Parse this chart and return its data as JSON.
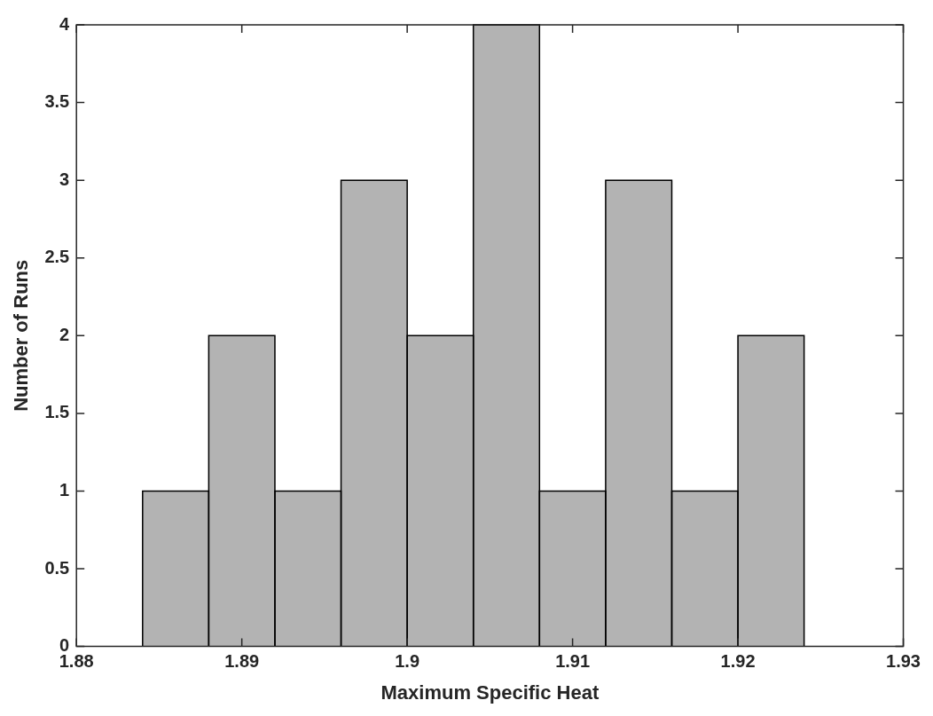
{
  "chart_data": {
    "type": "histogram",
    "xlabel": "Maximum Specific Heat",
    "ylabel": "Number of Runs",
    "bins": [
      1.884,
      1.888,
      1.892,
      1.896,
      1.9,
      1.904,
      1.908,
      1.912,
      1.916,
      1.92,
      1.924
    ],
    "values": [
      1,
      2,
      1,
      3,
      2,
      4,
      1,
      3,
      1,
      2
    ],
    "color": "#b3b3b3",
    "xlim": [
      1.88,
      1.93
    ],
    "xticks": [
      1.88,
      1.89,
      1.9,
      1.91,
      1.92,
      1.93
    ],
    "ylim": [
      0,
      4
    ],
    "yticks": [
      0,
      0.5,
      1,
      1.5,
      2,
      2.5,
      3,
      3.5,
      4
    ]
  }
}
